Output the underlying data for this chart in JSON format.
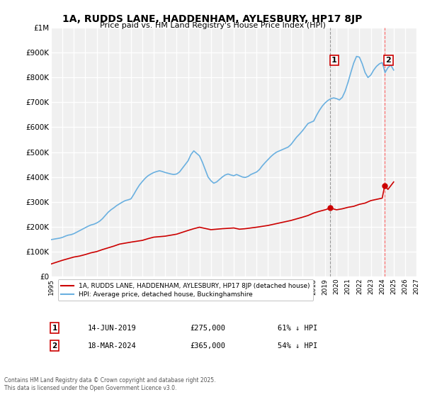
{
  "title": "1A, RUDDS LANE, HADDENHAM, AYLESBURY, HP17 8JP",
  "subtitle": "Price paid vs. HM Land Registry's House Price Index (HPI)",
  "xlabel": "",
  "ylabel": "",
  "background_color": "#ffffff",
  "plot_bg_color": "#f0f0f0",
  "grid_color": "#ffffff",
  "hpi_color": "#6ab0e0",
  "price_color": "#cc0000",
  "vline1_color": "#999999",
  "vline2_color": "#ff6666",
  "marker1_color": "#cc0000",
  "marker2_color": "#cc0000",
  "point1_x": 2019.45,
  "point1_y": 275000,
  "point2_x": 2024.21,
  "point2_y": 365000,
  "ylim": [
    0,
    1000000
  ],
  "xlim": [
    1995,
    2027
  ],
  "yticks": [
    0,
    100000,
    200000,
    300000,
    400000,
    500000,
    600000,
    700000,
    800000,
    900000,
    1000000
  ],
  "ytick_labels": [
    "£0",
    "£100K",
    "£200K",
    "£300K",
    "£400K",
    "£500K",
    "£600K",
    "£700K",
    "£800K",
    "£900K",
    "£1M"
  ],
  "xticks": [
    1995,
    1996,
    1997,
    1998,
    1999,
    2000,
    2001,
    2002,
    2003,
    2004,
    2005,
    2006,
    2007,
    2008,
    2009,
    2010,
    2011,
    2012,
    2013,
    2014,
    2015,
    2016,
    2017,
    2018,
    2019,
    2020,
    2021,
    2022,
    2023,
    2024,
    2025,
    2026,
    2027
  ],
  "legend_label_price": "1A, RUDDS LANE, HADDENHAM, AYLESBURY, HP17 8JP (detached house)",
  "legend_label_hpi": "HPI: Average price, detached house, Buckinghamshire",
  "annotation1_label": "1",
  "annotation2_label": "2",
  "table_row1": [
    "1",
    "14-JUN-2019",
    "£275,000",
    "61% ↓ HPI"
  ],
  "table_row2": [
    "2",
    "18-MAR-2024",
    "£365,000",
    "54% ↓ HPI"
  ],
  "footnote": "Contains HM Land Registry data © Crown copyright and database right 2025.\nThis data is licensed under the Open Government Licence v3.0.",
  "hpi_x": [
    1995.0,
    1995.25,
    1995.5,
    1995.75,
    1996.0,
    1996.25,
    1996.5,
    1996.75,
    1997.0,
    1997.25,
    1997.5,
    1997.75,
    1998.0,
    1998.25,
    1998.5,
    1998.75,
    1999.0,
    1999.25,
    1999.5,
    1999.75,
    2000.0,
    2000.25,
    2000.5,
    2000.75,
    2001.0,
    2001.25,
    2001.5,
    2001.75,
    2002.0,
    2002.25,
    2002.5,
    2002.75,
    2003.0,
    2003.25,
    2003.5,
    2003.75,
    2004.0,
    2004.25,
    2004.5,
    2004.75,
    2005.0,
    2005.25,
    2005.5,
    2005.75,
    2006.0,
    2006.25,
    2006.5,
    2006.75,
    2007.0,
    2007.25,
    2007.5,
    2007.75,
    2008.0,
    2008.25,
    2008.5,
    2008.75,
    2009.0,
    2009.25,
    2009.5,
    2009.75,
    2010.0,
    2010.25,
    2010.5,
    2010.75,
    2011.0,
    2011.25,
    2011.5,
    2011.75,
    2012.0,
    2012.25,
    2012.5,
    2012.75,
    2013.0,
    2013.25,
    2013.5,
    2013.75,
    2014.0,
    2014.25,
    2014.5,
    2014.75,
    2015.0,
    2015.25,
    2015.5,
    2015.75,
    2016.0,
    2016.25,
    2016.5,
    2016.75,
    2017.0,
    2017.25,
    2017.5,
    2017.75,
    2018.0,
    2018.25,
    2018.5,
    2018.75,
    2019.0,
    2019.25,
    2019.5,
    2019.75,
    2020.0,
    2020.25,
    2020.5,
    2020.75,
    2021.0,
    2021.25,
    2021.5,
    2021.75,
    2022.0,
    2022.25,
    2022.5,
    2022.75,
    2023.0,
    2023.25,
    2023.5,
    2023.75,
    2024.0,
    2024.25,
    2024.5,
    2024.75,
    2025.0
  ],
  "hpi_y": [
    148000,
    150000,
    152000,
    154000,
    157000,
    162000,
    166000,
    168000,
    172000,
    178000,
    184000,
    190000,
    196000,
    202000,
    207000,
    210000,
    215000,
    222000,
    232000,
    245000,
    258000,
    268000,
    276000,
    285000,
    292000,
    299000,
    305000,
    308000,
    312000,
    330000,
    350000,
    368000,
    382000,
    395000,
    405000,
    412000,
    418000,
    422000,
    425000,
    422000,
    418000,
    415000,
    412000,
    410000,
    412000,
    420000,
    435000,
    450000,
    465000,
    490000,
    505000,
    495000,
    485000,
    460000,
    430000,
    400000,
    385000,
    375000,
    380000,
    390000,
    400000,
    408000,
    412000,
    408000,
    405000,
    410000,
    405000,
    400000,
    398000,
    402000,
    410000,
    415000,
    420000,
    430000,
    445000,
    458000,
    470000,
    482000,
    492000,
    500000,
    505000,
    510000,
    515000,
    520000,
    530000,
    545000,
    560000,
    572000,
    585000,
    600000,
    615000,
    620000,
    625000,
    648000,
    668000,
    685000,
    698000,
    708000,
    715000,
    718000,
    715000,
    710000,
    720000,
    745000,
    780000,
    820000,
    858000,
    885000,
    882000,
    855000,
    820000,
    800000,
    810000,
    830000,
    845000,
    855000,
    860000,
    820000,
    840000,
    850000,
    830000
  ],
  "price_x": [
    1995.0,
    1996.0,
    1997.0,
    1997.5,
    1998.0,
    1998.5,
    1999.0,
    1999.5,
    2000.0,
    2000.5,
    2001.0,
    2002.0,
    2003.0,
    2003.5,
    2004.0,
    2005.0,
    2006.0,
    2007.0,
    2007.5,
    2008.0,
    2009.0,
    2010.0,
    2011.0,
    2011.5,
    2012.0,
    2013.0,
    2014.0,
    2015.0,
    2016.0,
    2017.0,
    2017.5,
    2018.0,
    2018.5,
    2019.0,
    2019.45,
    2020.0,
    2020.5,
    2021.0,
    2021.5,
    2022.0,
    2022.5,
    2023.0,
    2023.5,
    2024.0,
    2024.21,
    2024.5,
    2025.0
  ],
  "price_y": [
    50000,
    65000,
    78000,
    82000,
    88000,
    95000,
    100000,
    108000,
    115000,
    122000,
    130000,
    138000,
    145000,
    152000,
    158000,
    162000,
    170000,
    185000,
    192000,
    198000,
    188000,
    192000,
    195000,
    190000,
    192000,
    198000,
    205000,
    215000,
    225000,
    238000,
    245000,
    255000,
    262000,
    268000,
    275000,
    268000,
    272000,
    278000,
    282000,
    290000,
    295000,
    305000,
    310000,
    315000,
    365000,
    350000,
    380000
  ]
}
